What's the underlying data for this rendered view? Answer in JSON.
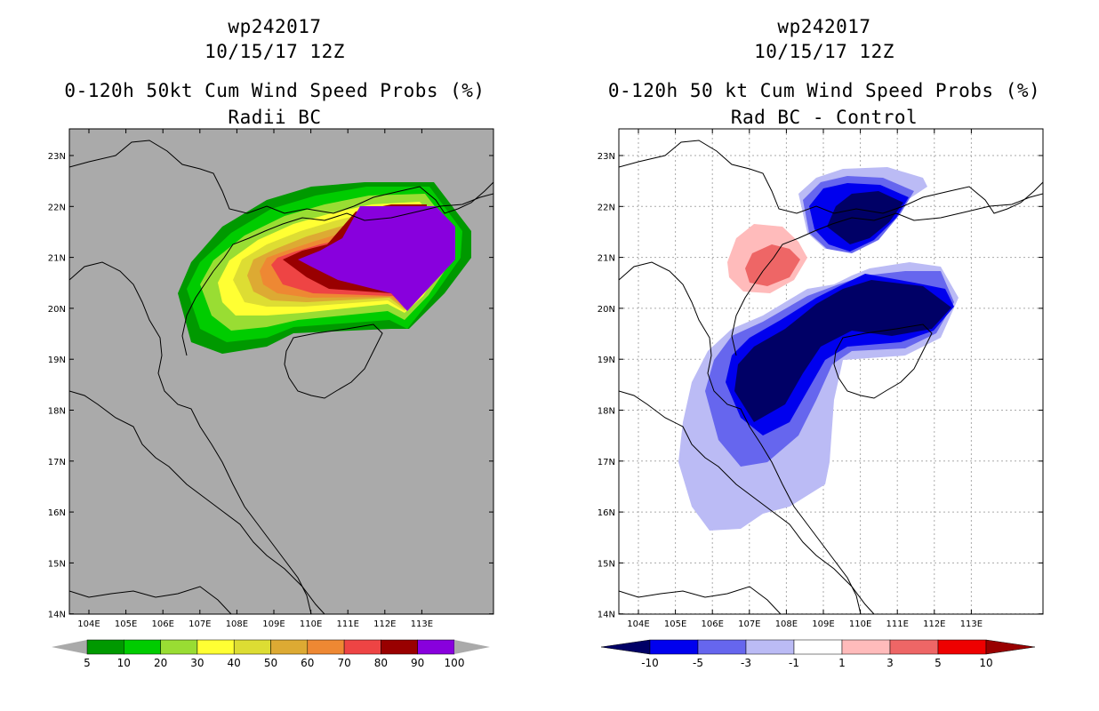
{
  "left_panel": {
    "title_line1": "wp242017",
    "title_line2": "10/15/17 12Z",
    "title_line3": "0-120h 50kt Cum Wind Speed Probs (%)",
    "title_line4": "Radii BC",
    "legend": {
      "colors": [
        "#009900",
        "#00cc00",
        "#99dd33",
        "#ffff33",
        "#dddd33",
        "#ddaa33",
        "#ee8833",
        "#ee4444",
        "#990000",
        "#8800dd"
      ],
      "labels": [
        "5",
        "10",
        "20",
        "30",
        "40",
        "50",
        "60",
        "70",
        "80",
        "90",
        "100"
      ]
    }
  },
  "right_panel": {
    "title_line1": "wp242017",
    "title_line2": "10/15/17 12Z",
    "title_line3": "0-120h 50 kt Cum Wind Speed Probs (%)",
    "title_line4": "Rad BC - Control",
    "legend": {
      "colors": [
        "#000066",
        "#0000ee",
        "#6666ee",
        "#bbbbf5",
        "#ffffff",
        "#ffbbbb",
        "#ee6666",
        "#ee0000",
        "#990000"
      ],
      "labels": [
        "-10",
        "-5",
        "-3",
        "-1",
        "1",
        "3",
        "5",
        "10"
      ]
    }
  },
  "axes": {
    "lon_ticks": [
      "104E",
      "105E",
      "106E",
      "107E",
      "108E",
      "109E",
      "110E",
      "111E",
      "112E",
      "113E"
    ],
    "lat_ticks": [
      "23N",
      "22N",
      "21N",
      "20N",
      "19N",
      "18N",
      "17N",
      "16N",
      "15N",
      "14N"
    ]
  },
  "colors": {
    "land_left": "#aaaaaa",
    "grid": "#aaaaaa"
  }
}
